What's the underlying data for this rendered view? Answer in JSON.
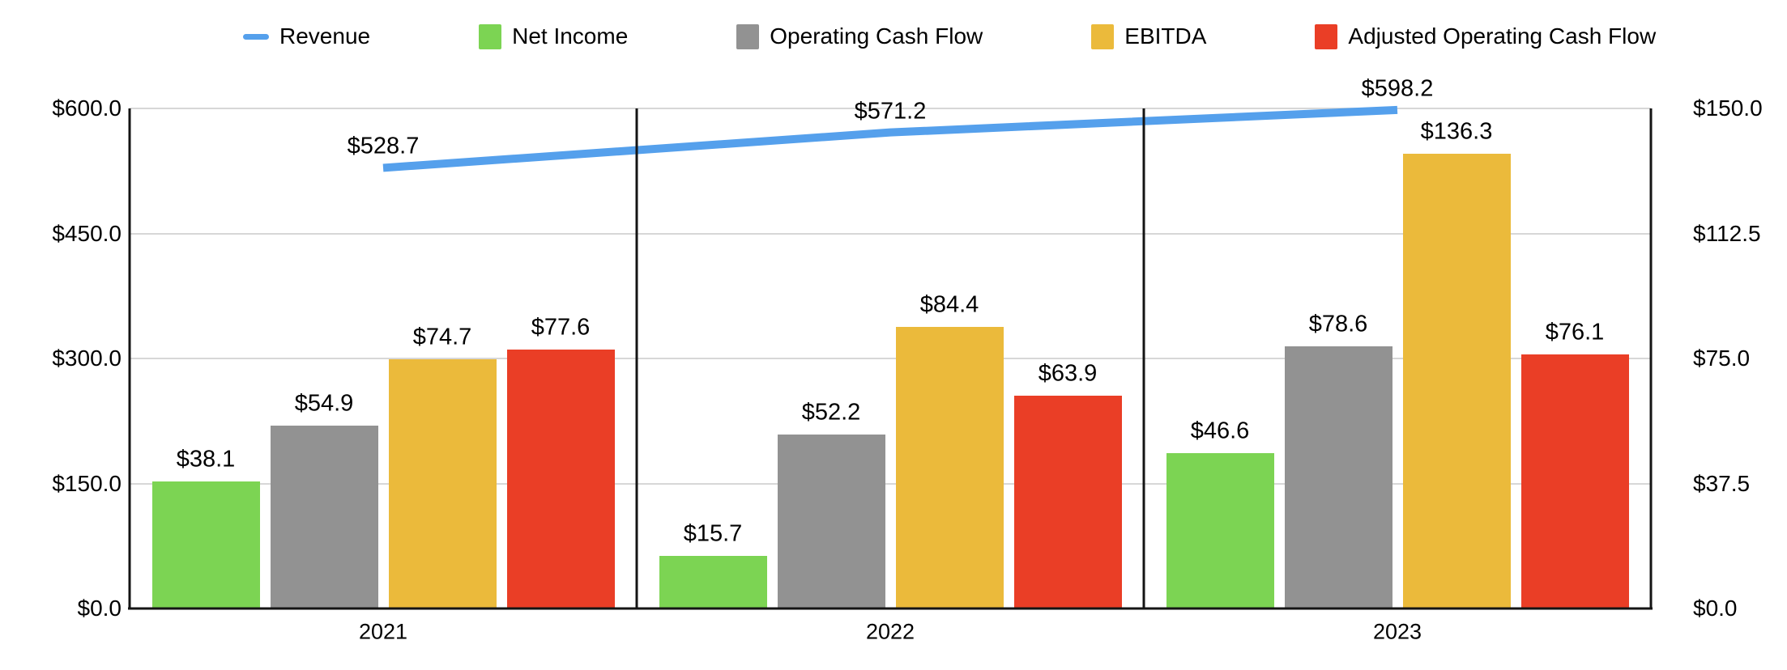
{
  "chart_data": {
    "type": "combo-bar-line",
    "categories": [
      "2021",
      "2022",
      "2023"
    ],
    "bar_series": [
      {
        "name": "Net Income",
        "color": "#7CD453",
        "axis": "right",
        "values": [
          38.1,
          15.7,
          46.6
        ],
        "value_labels": [
          "$38.1",
          "$15.7",
          "$46.6"
        ]
      },
      {
        "name": "Operating Cash Flow",
        "color": "#929292",
        "axis": "right",
        "values": [
          54.9,
          52.2,
          78.6
        ],
        "value_labels": [
          "$54.9",
          "$52.2",
          "$78.6"
        ]
      },
      {
        "name": "EBITDA",
        "color": "#EBBA3B",
        "axis": "right",
        "values": [
          74.7,
          84.4,
          136.3
        ],
        "value_labels": [
          "$74.7",
          "$84.4",
          "$136.3"
        ]
      },
      {
        "name": "Adjusted Operating Cash Flow",
        "color": "#EA3E26",
        "axis": "right",
        "values": [
          77.6,
          63.9,
          76.1
        ],
        "value_labels": [
          "$77.6",
          "$63.9",
          "$76.1"
        ]
      }
    ],
    "line_series": {
      "name": "Revenue",
      "color": "#55A0EC",
      "axis": "left",
      "values": [
        528.7,
        571.2,
        598.2
      ],
      "value_labels": [
        "$528.7",
        "$571.2",
        "$598.2"
      ]
    },
    "left_axis": {
      "min": 0,
      "max": 600,
      "ticks_top_to_bottom": [
        "$600.0",
        "$450.0",
        "$300.0",
        "$150.0",
        "$0.0"
      ]
    },
    "right_axis": {
      "min": 0,
      "max": 150,
      "ticks_top_to_bottom": [
        "$150.0",
        "$112.5",
        "$75.0",
        "$37.5",
        "$0.0"
      ]
    },
    "legend": {
      "position": "top",
      "items": [
        {
          "label": "Revenue",
          "marker": "dash",
          "color": "#55A0EC"
        },
        {
          "label": "Net Income",
          "marker": "square",
          "color": "#7CD453"
        },
        {
          "label": "Operating Cash Flow",
          "marker": "square",
          "color": "#929292"
        },
        {
          "label": "EBITDA",
          "marker": "square",
          "color": "#EBBA3B"
        },
        {
          "label": "Adjusted Operating Cash Flow",
          "marker": "square",
          "color": "#EA3E26"
        }
      ]
    },
    "grid": true,
    "panel_separators": true,
    "title": "",
    "xlabel": "",
    "ylabel": ""
  },
  "colors": {
    "background": "#ffffff",
    "gridline": "#d7d7d7",
    "axis_line": "#141414",
    "text": "#000000"
  }
}
